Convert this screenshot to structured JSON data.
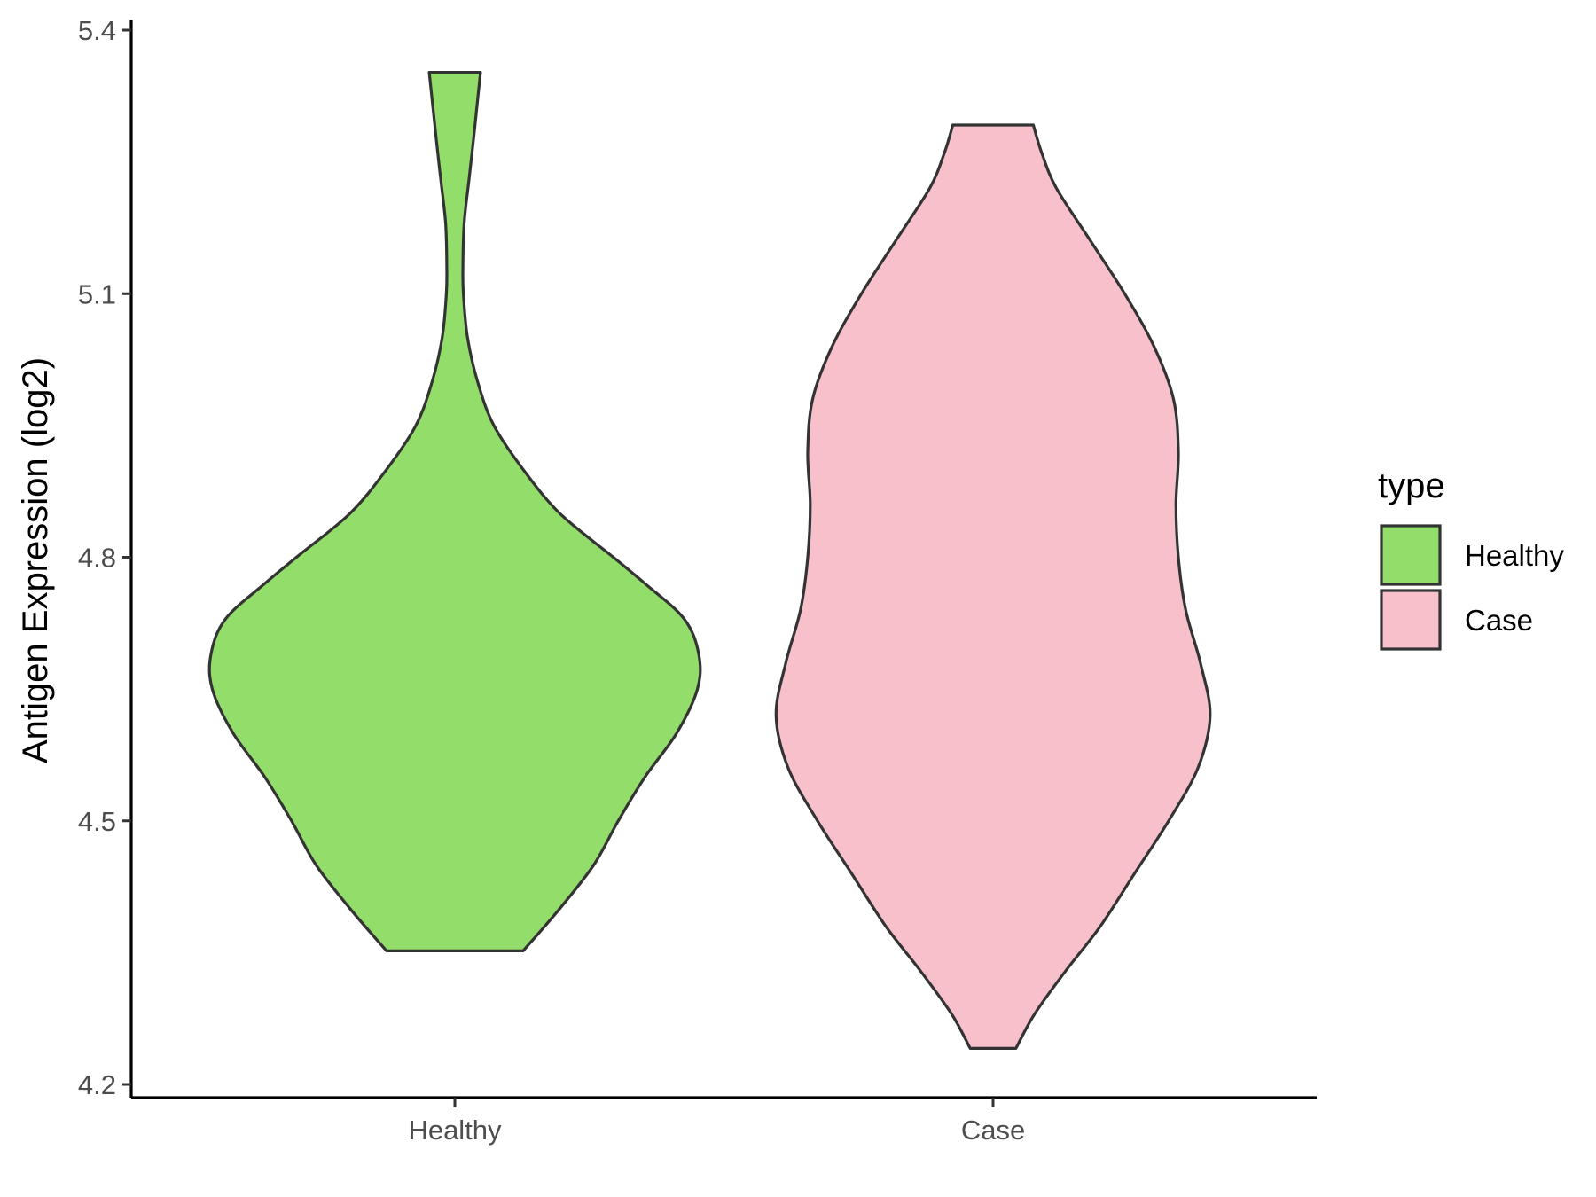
{
  "chart_data": {
    "type": "violin",
    "xlabel": "",
    "ylabel": "Antigen Expression (log2)",
    "ylim": [
      4.2,
      5.4
    ],
    "yticks": [
      "4.2",
      "4.5",
      "4.8",
      "5.1",
      "5.4"
    ],
    "categories": [
      "Healthy",
      "Case"
    ],
    "grid": false,
    "legend": {
      "title": "type",
      "position": "right",
      "items": [
        "Healthy",
        "Case"
      ]
    },
    "series": [
      {
        "name": "Healthy",
        "color": "#93dd6a",
        "min": 4.352,
        "max": 5.352,
        "density": [
          [
            4.352,
            0.28
          ],
          [
            4.4,
            0.43
          ],
          [
            4.45,
            0.57
          ],
          [
            4.5,
            0.67
          ],
          [
            4.55,
            0.78
          ],
          [
            4.6,
            0.91
          ],
          [
            4.65,
            0.995
          ],
          [
            4.69,
            1.0
          ],
          [
            4.73,
            0.94
          ],
          [
            4.77,
            0.78
          ],
          [
            4.8,
            0.65
          ],
          [
            4.85,
            0.43
          ],
          [
            4.9,
            0.28
          ],
          [
            4.95,
            0.16
          ],
          [
            5.0,
            0.093
          ],
          [
            5.05,
            0.052
          ],
          [
            5.1,
            0.035
          ],
          [
            5.13,
            0.033
          ],
          [
            5.18,
            0.038
          ],
          [
            5.23,
            0.058
          ],
          [
            5.28,
            0.078
          ],
          [
            5.352,
            0.105
          ]
        ]
      },
      {
        "name": "Case",
        "color": "#f7c0cb",
        "min": 4.241,
        "max": 5.292,
        "density": [
          [
            4.241,
            0.094
          ],
          [
            4.28,
            0.17
          ],
          [
            4.33,
            0.3
          ],
          [
            4.38,
            0.44
          ],
          [
            4.44,
            0.58
          ],
          [
            4.5,
            0.72
          ],
          [
            4.56,
            0.84
          ],
          [
            4.62,
            0.89
          ],
          [
            4.68,
            0.85
          ],
          [
            4.74,
            0.79
          ],
          [
            4.8,
            0.76
          ],
          [
            4.86,
            0.75
          ],
          [
            4.92,
            0.76
          ],
          [
            4.98,
            0.74
          ],
          [
            5.04,
            0.66
          ],
          [
            5.1,
            0.54
          ],
          [
            5.16,
            0.4
          ],
          [
            5.22,
            0.26
          ],
          [
            5.26,
            0.2
          ],
          [
            5.292,
            0.165
          ]
        ]
      }
    ]
  }
}
